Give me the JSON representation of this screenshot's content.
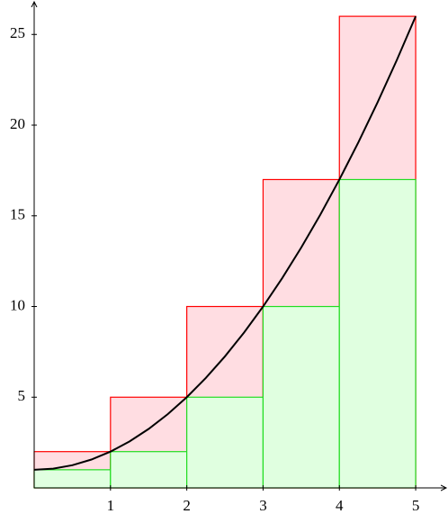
{
  "chart_data": {
    "type": "histogram",
    "bins": [
      0,
      1,
      2,
      3,
      4,
      5
    ],
    "series": [
      {
        "color": "#ff0000",
        "fill": "#ffdde2",
        "values": [
          2,
          5,
          10,
          17,
          26
        ]
      },
      {
        "color": "#22dd22",
        "fill": "#e0ffe0",
        "values": [
          1,
          2,
          5,
          10,
          17
        ]
      }
    ],
    "curve": {
      "type": "line",
      "color": "#000000",
      "x": [
        0,
        0.25,
        0.5,
        0.75,
        1,
        1.25,
        1.5,
        1.75,
        2,
        2.25,
        2.5,
        2.75,
        3,
        3.25,
        3.5,
        3.75,
        4,
        4.25,
        4.5,
        4.75,
        5
      ],
      "values": [
        1,
        1.0625,
        1.25,
        1.5625,
        2,
        2.5625,
        3.25,
        4.0625,
        5,
        6.0625,
        7.25,
        8.5625,
        10,
        11.5625,
        13.25,
        15.0625,
        17,
        19.0625,
        21.25,
        23.5625,
        26
      ]
    },
    "xlim": [
      0,
      5.4
    ],
    "ylim": [
      0,
      26.8
    ],
    "xticks": [
      1,
      2,
      3,
      4,
      5
    ],
    "yticks": [
      5,
      10,
      15,
      20,
      25
    ]
  }
}
